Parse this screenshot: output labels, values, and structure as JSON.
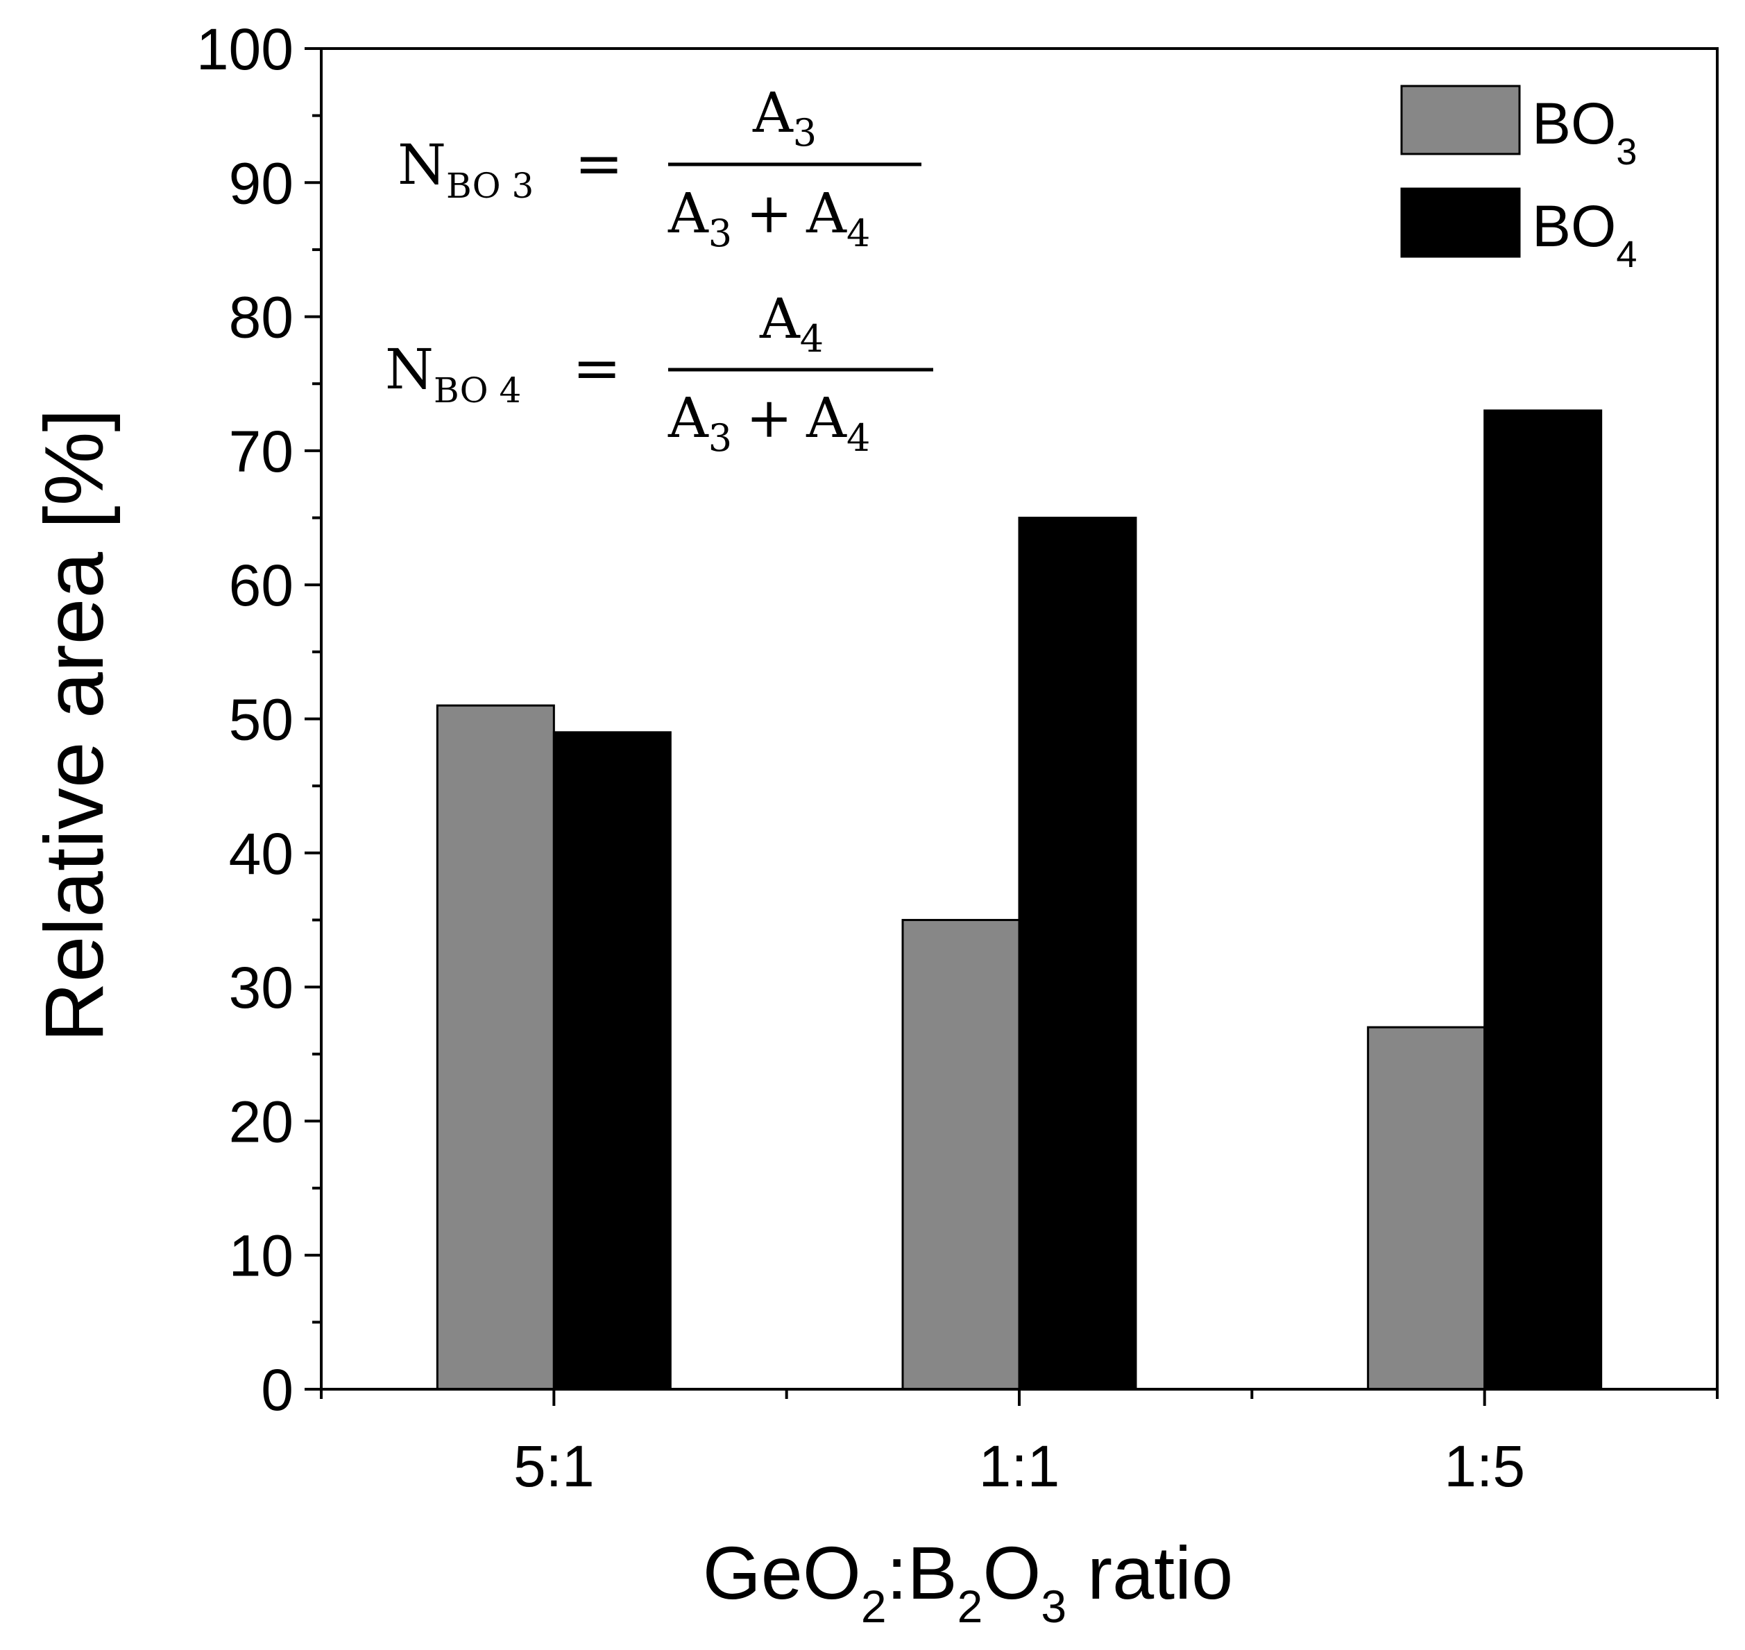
{
  "chart_data": {
    "type": "bar",
    "title": "",
    "xlabel": {
      "parts": [
        {
          "t": "GeO"
        },
        {
          "t": "2",
          "sub": true
        },
        {
          "t": ":B"
        },
        {
          "t": "2",
          "sub": true
        },
        {
          "t": "O"
        },
        {
          "t": "3",
          "sub": true
        },
        {
          "t": " ratio"
        }
      ]
    },
    "ylabel": "Relative area [%]",
    "categories": [
      "5:1",
      "1:1",
      "1:5"
    ],
    "ylim": [
      0,
      100
    ],
    "yticks": [
      0,
      10,
      20,
      30,
      40,
      50,
      60,
      70,
      80,
      90,
      100
    ],
    "ytick_labels": [
      "0",
      "10",
      "20",
      "30",
      "40",
      "50",
      "60",
      "70",
      "80",
      "90",
      "100"
    ],
    "series": [
      {
        "name": "BO3",
        "label_main": "BO",
        "label_sub": "3",
        "color": "#878787",
        "values": [
          51,
          35,
          27
        ]
      },
      {
        "name": "BO4",
        "label_main": "BO",
        "label_sub": "4",
        "color": "#000000",
        "values": [
          49,
          65,
          73
        ]
      }
    ],
    "legend_position": "top-right",
    "annotations": {
      "eq1": {
        "lhs": "N",
        "lhs_sub": "BO 3",
        "equals": "=",
        "num": "A",
        "num_sub": "3",
        "den_a": "A",
        "den_a_sub": "3",
        "plus": "+",
        "den_b": "A",
        "den_b_sub": "4"
      },
      "eq2": {
        "lhs": "N",
        "lhs_sub": "BO 4",
        "equals": "=",
        "num": "A",
        "num_sub": "4",
        "den_a": "A",
        "den_a_sub": "3",
        "plus": "+",
        "den_b": "A",
        "den_b_sub": "4"
      }
    }
  }
}
